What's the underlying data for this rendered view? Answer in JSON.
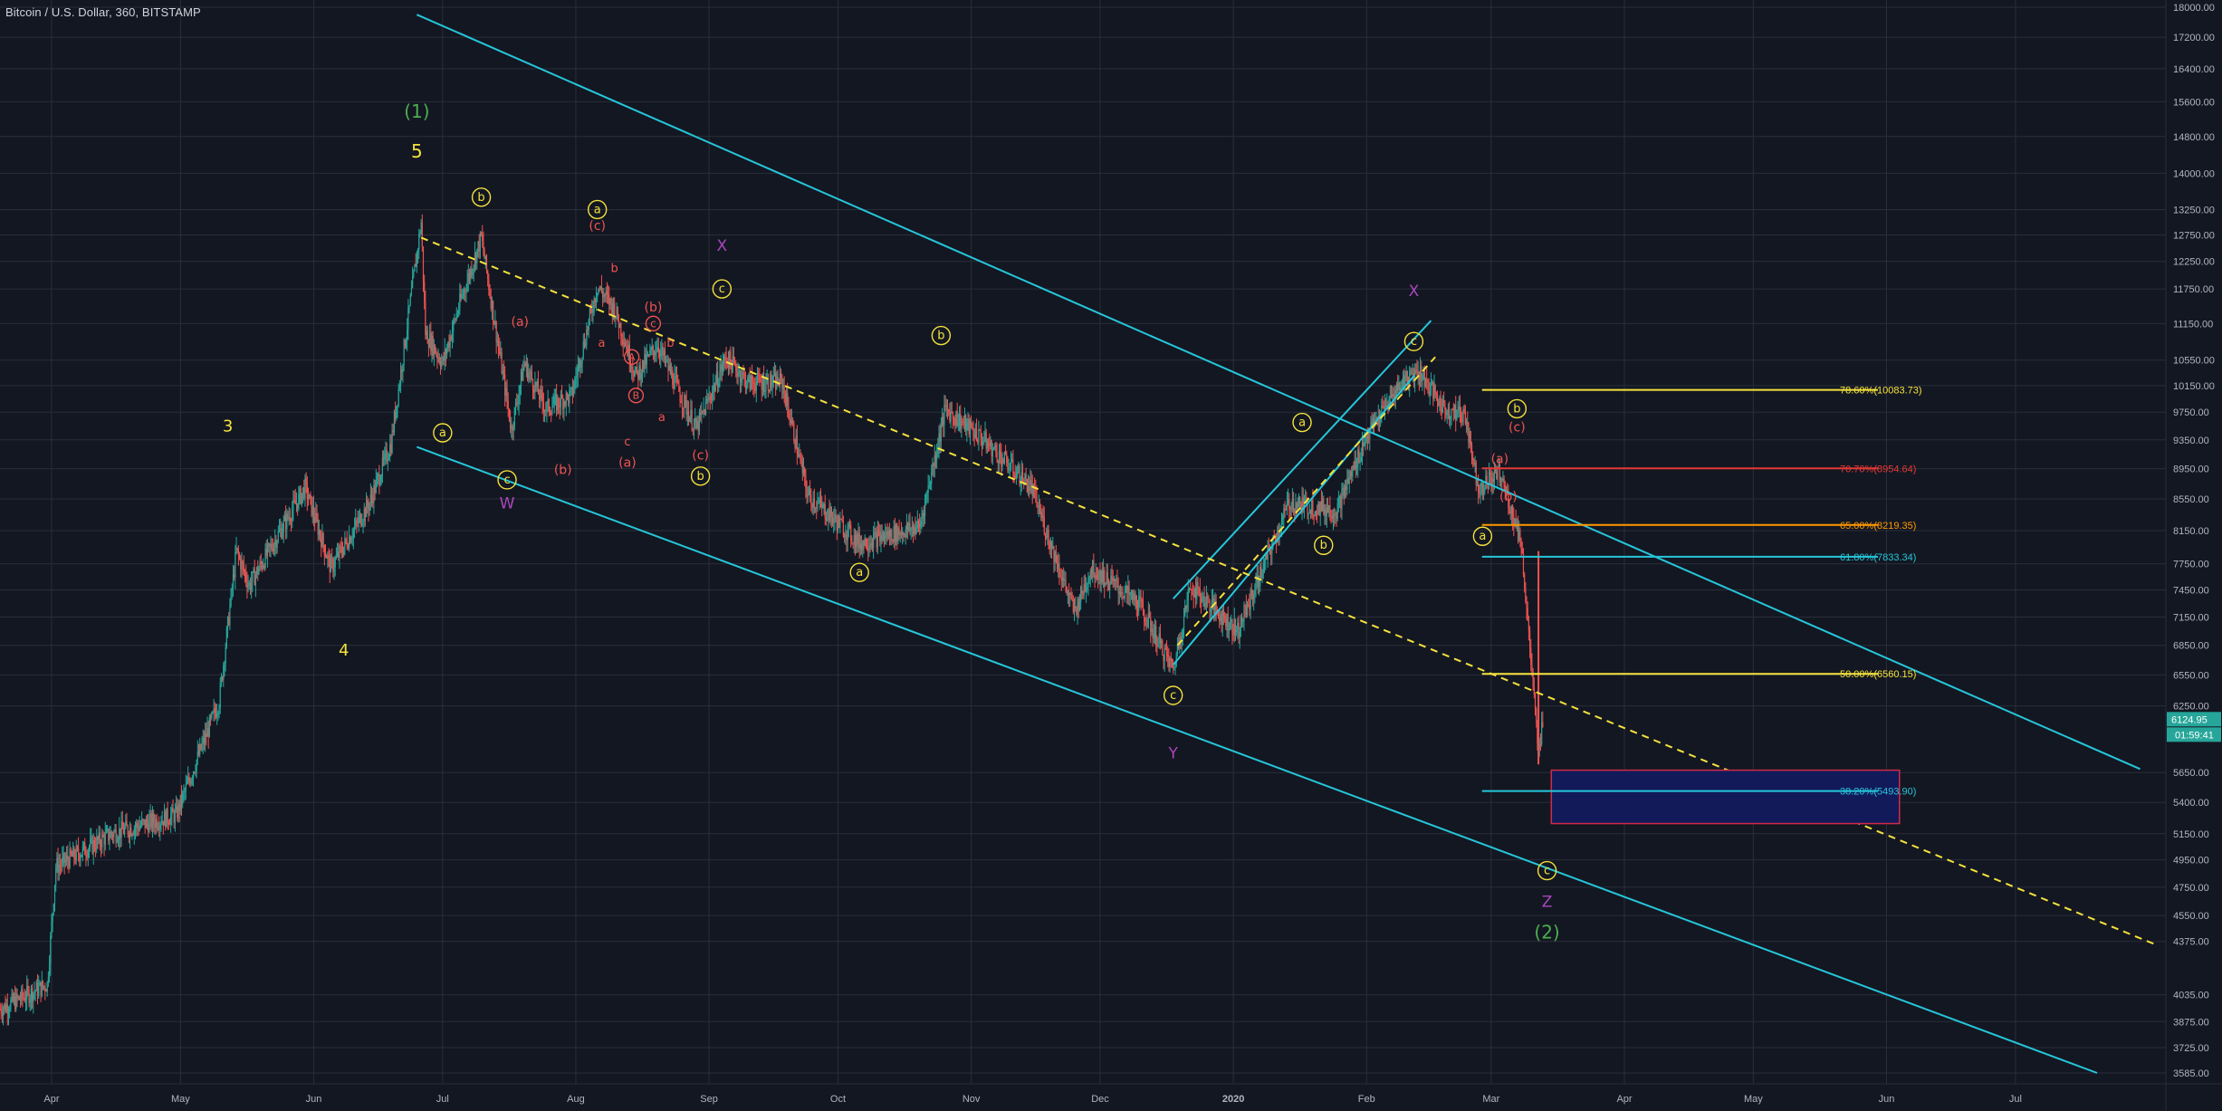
{
  "chart_title": "Bitcoin / U.S. Dollar, 360, BITSTAMP",
  "colors": {
    "background": "#131722",
    "grid": "#2a2e39",
    "axis_text": "#b2b5be",
    "channel": "#26c6da",
    "dashed_trend": "#f5e23c",
    "candle_up": "#26a69a",
    "candle_down": "#ef5350",
    "target_box_fill": "#121a5a",
    "target_box_border": "#d12a4a",
    "last_price_bg": "#26a69a"
  },
  "chart_data": {
    "type": "candlestick",
    "symbol": "BTCUSD",
    "interval": "360",
    "exchange": "BITSTAMP",
    "x_start": "2019-03-20",
    "x_end": "2020-08-05",
    "y_range": [
      3585,
      18000
    ],
    "y_ticks": [
      "18000.00",
      "17200.00",
      "16400.00",
      "15600.00",
      "14800.00",
      "14000.00",
      "13250.00",
      "12750.00",
      "12250.00",
      "11750.00",
      "11150.00",
      "10550.00",
      "10150.00",
      "9750.00",
      "9350.00",
      "8950.00",
      "8550.00",
      "8150.00",
      "7750.00",
      "7450.00",
      "7150.00",
      "6850.00",
      "6550.00",
      "6250.00",
      "5650.00",
      "5400.00",
      "5150.00",
      "4950.00",
      "4750.00",
      "4550.00",
      "4375.00",
      "4035.00",
      "3875.00",
      "3725.00",
      "3585.00"
    ],
    "x_ticks": [
      {
        "label": "Apr",
        "date": "2019-04-01"
      },
      {
        "label": "May",
        "date": "2019-05-01"
      },
      {
        "label": "Jun",
        "date": "2019-06-01"
      },
      {
        "label": "Jul",
        "date": "2019-07-01"
      },
      {
        "label": "Aug",
        "date": "2019-08-01"
      },
      {
        "label": "Sep",
        "date": "2019-09-01"
      },
      {
        "label": "Oct",
        "date": "2019-10-01"
      },
      {
        "label": "Nov",
        "date": "2019-11-01"
      },
      {
        "label": "Dec",
        "date": "2019-12-01"
      },
      {
        "label": "2020",
        "date": "2020-01-01",
        "bold": true
      },
      {
        "label": "Feb",
        "date": "2020-02-01"
      },
      {
        "label": "Mar",
        "date": "2020-03-01"
      },
      {
        "label": "Apr",
        "date": "2020-04-01"
      },
      {
        "label": "May",
        "date": "2020-05-01"
      },
      {
        "label": "Jun",
        "date": "2020-06-01"
      },
      {
        "label": "Jul",
        "date": "2020-07-01"
      }
    ],
    "price_path": [
      [
        "2019-03-20",
        3950
      ],
      [
        "2019-03-31",
        4100
      ],
      [
        "2019-04-02",
        4900
      ],
      [
        "2019-04-15",
        5150
      ],
      [
        "2019-04-30",
        5300
      ],
      [
        "2019-05-10",
        6300
      ],
      [
        "2019-05-14",
        7900
      ],
      [
        "2019-05-17",
        7500
      ],
      [
        "2019-05-30",
        8700
      ],
      [
        "2019-06-05",
        7700
      ],
      [
        "2019-06-14",
        8500
      ],
      [
        "2019-06-19",
        9300
      ],
      [
        "2019-06-26",
        13000
      ],
      [
        "2019-06-27",
        11000
      ],
      [
        "2019-07-01",
        10500
      ],
      [
        "2019-07-05",
        11500
      ],
      [
        "2019-07-10",
        12700
      ],
      [
        "2019-07-17",
        9500
      ],
      [
        "2019-07-20",
        10500
      ],
      [
        "2019-07-25",
        9800
      ],
      [
        "2019-07-31",
        10000
      ],
      [
        "2019-08-06",
        11800
      ],
      [
        "2019-08-10",
        11400
      ],
      [
        "2019-08-15",
        10300
      ],
      [
        "2019-08-20",
        10800
      ],
      [
        "2019-08-29",
        9500
      ],
      [
        "2019-09-05",
        10600
      ],
      [
        "2019-09-10",
        10200
      ],
      [
        "2019-09-18",
        10200
      ],
      [
        "2019-09-24",
        8600
      ],
      [
        "2019-10-06",
        8000
      ],
      [
        "2019-10-20",
        8200
      ],
      [
        "2019-10-26",
        9800
      ],
      [
        "2019-11-03",
        9400
      ],
      [
        "2019-11-15",
        8700
      ],
      [
        "2019-11-25",
        7200
      ],
      [
        "2019-11-29",
        7700
      ],
      [
        "2019-12-10",
        7300
      ],
      [
        "2019-12-18",
        6600
      ],
      [
        "2019-12-22",
        7500
      ],
      [
        "2020-01-02",
        7000
      ],
      [
        "2020-01-14",
        8500
      ],
      [
        "2020-01-25",
        8400
      ],
      [
        "2020-02-01",
        9400
      ],
      [
        "2020-02-09",
        10200
      ],
      [
        "2020-02-13",
        10400
      ],
      [
        "2020-02-19",
        9800
      ],
      [
        "2020-02-24",
        9700
      ],
      [
        "2020-02-27",
        8700
      ],
      [
        "2020-03-03",
        8900
      ],
      [
        "2020-03-08",
        8000
      ],
      [
        "2020-03-12",
        5800
      ],
      [
        "2020-03-13",
        6124.95
      ]
    ],
    "last_price": "6124.95",
    "countdown": "01:59:41",
    "channel_lines": [
      {
        "p1": [
          "2019-06-25",
          17800
        ],
        "p2": [
          "2020-07-30",
          5680
        ]
      },
      {
        "p1": [
          "2019-06-25",
          9250
        ],
        "p2": [
          "2020-07-20",
          3585
        ]
      },
      {
        "p1": [
          "2019-12-18",
          6650
        ],
        "p2": [
          "2020-02-12",
          10300
        ]
      },
      {
        "p1": [
          "2019-12-18",
          7350
        ],
        "p2": [
          "2020-02-16",
          11200
        ]
      }
    ],
    "dashed_trend": {
      "p1": [
        "2019-06-26",
        12700
      ],
      "p2": [
        "2020-08-03",
        4350
      ]
    },
    "dashed_inner": {
      "p1": [
        "2019-12-19",
        6850
      ],
      "p2": [
        "2020-02-17",
        10600
      ]
    },
    "fib_levels": [
      {
        "label": "78.60%(10083.73)",
        "price": 10083.73,
        "color": "#f5e23c"
      },
      {
        "label": "70.70%(8954.64)",
        "price": 8954.64,
        "color": "#e53935"
      },
      {
        "label": "65.00%(8219.35)",
        "price": 8219.35,
        "color": "#ff9800"
      },
      {
        "label": "61.80%(7833.34)",
        "price": 7833.34,
        "color": "#26c6da"
      },
      {
        "label": "50.00%(6560.15)",
        "price": 6560.15,
        "color": "#f5e23c"
      },
      {
        "label": "38.20%(5493.90)",
        "price": 5493.9,
        "color": "#26c6da"
      }
    ],
    "fib_line_start": "2020-04-10",
    "fib_line_end": "2020-05-30",
    "target_box": {
      "t1": "2020-03-15",
      "t2": "2020-06-04",
      "p_top": 5670,
      "p_bottom": 5230
    },
    "wave_labels": [
      {
        "text": "(1)",
        "t": "2019-06-25",
        "p": 15350,
        "color": "#4caf50",
        "style": "plain",
        "size": 20
      },
      {
        "text": "5",
        "t": "2019-06-25",
        "p": 14450,
        "color": "#f5e23c",
        "style": "plain",
        "size": 20
      },
      {
        "text": "3",
        "t": "2019-05-12",
        "p": 9550,
        "color": "#f5e23c",
        "style": "plain",
        "size": 18
      },
      {
        "text": "4",
        "t": "2019-06-08",
        "p": 6800,
        "color": "#f5e23c",
        "style": "plain",
        "size": 18
      },
      {
        "text": "b",
        "t": "2019-07-10",
        "p": 13500,
        "color": "#f5e23c",
        "style": "circle",
        "size": 13
      },
      {
        "text": "a",
        "t": "2019-07-01",
        "p": 9450,
        "color": "#f5e23c",
        "style": "circle",
        "size": 13
      },
      {
        "text": "c",
        "t": "2019-07-16",
        "p": 8800,
        "color": "#f5e23c",
        "style": "circle",
        "size": 13
      },
      {
        "text": "W",
        "t": "2019-07-16",
        "p": 8500,
        "color": "#ab47bc",
        "style": "plain",
        "size": 17
      },
      {
        "text": "(a)",
        "t": "2019-07-19",
        "p": 11200,
        "color": "#ef5350",
        "style": "plain",
        "size": 14
      },
      {
        "text": "(b)",
        "t": "2019-07-29",
        "p": 8950,
        "color": "#ef5350",
        "style": "plain",
        "size": 14
      },
      {
        "text": "a",
        "t": "2019-08-06",
        "p": 13250,
        "color": "#f5e23c",
        "style": "circle",
        "size": 13
      },
      {
        "text": "(c)",
        "t": "2019-08-06",
        "p": 12950,
        "color": "#ef5350",
        "style": "plain",
        "size": 14
      },
      {
        "text": "b",
        "t": "2019-08-10",
        "p": 12150,
        "color": "#ef5350",
        "style": "plain",
        "size": 13
      },
      {
        "text": "a",
        "t": "2019-08-07",
        "p": 10850,
        "color": "#ef5350",
        "style": "plain",
        "size": 13
      },
      {
        "text": "(b)",
        "t": "2019-08-19",
        "p": 11450,
        "color": "#ef5350",
        "style": "plain",
        "size": 14
      },
      {
        "text": "c",
        "t": "2019-08-19",
        "p": 11150,
        "color": "#ef5350",
        "style": "ring",
        "size": 12
      },
      {
        "text": "b",
        "t": "2019-08-23",
        "p": 10850,
        "color": "#ef5350",
        "style": "plain",
        "size": 13
      },
      {
        "text": "A",
        "t": "2019-08-14",
        "p": 10600,
        "color": "#ef5350",
        "style": "ring",
        "size": 11
      },
      {
        "text": "B",
        "t": "2019-08-15",
        "p": 10000,
        "color": "#ef5350",
        "style": "ring",
        "size": 11
      },
      {
        "text": "a",
        "t": "2019-08-21",
        "p": 9700,
        "color": "#ef5350",
        "style": "plain",
        "size": 13
      },
      {
        "text": "c",
        "t": "2019-08-13",
        "p": 9350,
        "color": "#ef5350",
        "style": "plain",
        "size": 13
      },
      {
        "text": "(a)",
        "t": "2019-08-13",
        "p": 9050,
        "color": "#ef5350",
        "style": "plain",
        "size": 14
      },
      {
        "text": "(c)",
        "t": "2019-08-30",
        "p": 9150,
        "color": "#ef5350",
        "style": "plain",
        "size": 14
      },
      {
        "text": "b",
        "t": "2019-08-30",
        "p": 8850,
        "color": "#f5e23c",
        "style": "circle",
        "size": 13
      },
      {
        "text": "X",
        "t": "2019-09-04",
        "p": 12550,
        "color": "#ab47bc",
        "style": "plain",
        "size": 17
      },
      {
        "text": "c",
        "t": "2019-09-04",
        "p": 11750,
        "color": "#f5e23c",
        "style": "circle",
        "size": 13
      },
      {
        "text": "b",
        "t": "2019-10-25",
        "p": 10950,
        "color": "#f5e23c",
        "style": "circle",
        "size": 13
      },
      {
        "text": "a",
        "t": "2019-10-06",
        "p": 7650,
        "color": "#f5e23c",
        "style": "circle",
        "size": 13
      },
      {
        "text": "c",
        "t": "2019-12-18",
        "p": 6350,
        "color": "#f5e23c",
        "style": "circle",
        "size": 13
      },
      {
        "text": "Y",
        "t": "2019-12-18",
        "p": 5820,
        "color": "#ab47bc",
        "style": "plain",
        "size": 17
      },
      {
        "text": "a",
        "t": "2020-01-17",
        "p": 9600,
        "color": "#f5e23c",
        "style": "circle",
        "size": 13
      },
      {
        "text": "b",
        "t": "2020-01-22",
        "p": 7970,
        "color": "#f5e23c",
        "style": "circle",
        "size": 13
      },
      {
        "text": "c",
        "t": "2020-02-12",
        "p": 10850,
        "color": "#f5e23c",
        "style": "circle",
        "size": 13
      },
      {
        "text": "X",
        "t": "2020-02-12",
        "p": 11720,
        "color": "#ab47bc",
        "style": "plain",
        "size": 17
      },
      {
        "text": "b",
        "t": "2020-03-07",
        "p": 9800,
        "color": "#f5e23c",
        "style": "circle",
        "size": 13
      },
      {
        "text": "(c)",
        "t": "2020-03-07",
        "p": 9550,
        "color": "#ef5350",
        "style": "plain",
        "size": 14
      },
      {
        "text": "(a)",
        "t": "2020-03-03",
        "p": 9100,
        "color": "#ef5350",
        "style": "plain",
        "size": 14
      },
      {
        "text": "(b)",
        "t": "2020-03-05",
        "p": 8600,
        "color": "#ef5350",
        "style": "plain",
        "size": 14
      },
      {
        "text": "a",
        "t": "2020-02-28",
        "p": 8080,
        "color": "#f5e23c",
        "style": "circle",
        "size": 13
      },
      {
        "text": "c",
        "t": "2020-03-14",
        "p": 4870,
        "color": "#f5e23c",
        "style": "circle",
        "size": 13
      },
      {
        "text": "Z",
        "t": "2020-03-14",
        "p": 4650,
        "color": "#ab47bc",
        "style": "plain",
        "size": 17
      },
      {
        "text": "(2)",
        "t": "2020-03-14",
        "p": 4430,
        "color": "#4caf50",
        "style": "plain",
        "size": 20
      }
    ]
  }
}
